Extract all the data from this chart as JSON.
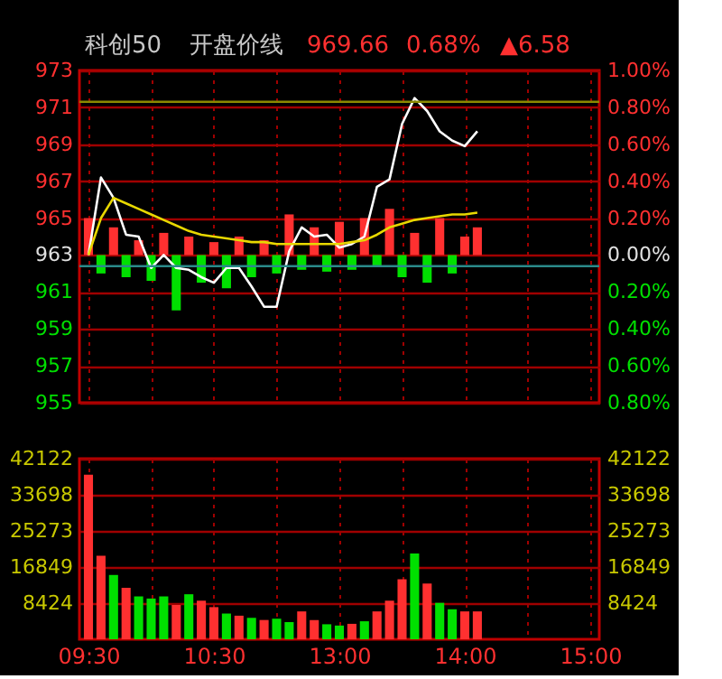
{
  "chart_data": [
    {
      "type": "line",
      "title": "科创50",
      "annotations": [
        "开盘价线",
        "969.66",
        "0.68%",
        "▲6.58"
      ],
      "categories": [
        null,
        null,
        null,
        null,
        null,
        null,
        null,
        null,
        null,
        null,
        null,
        null,
        null,
        null,
        null,
        null,
        null,
        null,
        null,
        null,
        null,
        null,
        null,
        null,
        null,
        null,
        null,
        null,
        null,
        null,
        null,
        null,
        null,
        null,
        null,
        null,
        null,
        null,
        null,
        null,
        null
      ],
      "ylim": [
        955,
        973
      ],
      "yticks": [
        955,
        957,
        959,
        961,
        963,
        965,
        967,
        969,
        971,
        973
      ],
      "y2lim": [
        -0.8,
        1.0
      ],
      "y2ticks": [
        {
          "value": -0.8,
          "label": "0.80%"
        },
        {
          "value": -0.6,
          "label": "0.60%"
        },
        {
          "value": -0.4,
          "label": "0.40%"
        },
        {
          "value": -0.2,
          "label": "0.20%"
        },
        {
          "value": 0,
          "label": "0.00%"
        },
        {
          "value": 0.2,
          "label": "0.20%"
        },
        {
          "value": 0.4,
          "label": "0.40%"
        },
        {
          "value": 0.6,
          "label": "0.60%"
        },
        {
          "value": 0.8,
          "label": "0.80%"
        },
        {
          "value": 1.0,
          "label": "1.00%"
        }
      ],
      "grid": true,
      "tick_labels": "y",
      "ref_lines": [
        {
          "axis": "y",
          "value": 971.3,
          "color": "#8a8a00"
        },
        {
          "axis": "y",
          "value": 962.4,
          "color": "#2a8a8a"
        }
      ],
      "series": [
        {
          "type": "bar",
          "values": [
            2.0,
            -1.0,
            1.5,
            -1.2,
            0.8,
            -1.4,
            1.2,
            -3.0,
            1.0,
            -1.5,
            0.7,
            -1.8,
            1.0,
            -1.2,
            0.8,
            -1.0,
            2.2,
            -0.8,
            1.5,
            -0.9,
            1.8,
            -0.8,
            2.0,
            -0.6,
            2.5,
            -1.2,
            1.2,
            -1.5,
            2.0,
            -1.0,
            1.0,
            1.5,
            null,
            null,
            null,
            null,
            null,
            null,
            null,
            null,
            null
          ],
          "base": [
            963,
            963,
            963,
            963,
            963,
            963,
            963,
            963,
            963,
            963,
            963,
            963,
            963,
            963,
            963,
            963,
            963,
            963,
            963,
            963,
            963,
            963,
            963,
            963,
            963,
            963,
            963,
            963,
            963,
            963,
            963,
            963,
            null,
            null,
            null,
            null,
            null,
            null,
            null,
            null,
            null
          ],
          "colors": [
            "#ff3030",
            "#00e000",
            "#ff3030",
            "#00e000",
            "#ff3030",
            "#00e000",
            "#ff3030",
            "#00e000",
            "#ff3030",
            "#00e000",
            "#ff3030",
            "#00e000",
            "#ff3030",
            "#00e000",
            "#ff3030",
            "#00e000",
            "#ff3030",
            "#00e000",
            "#ff3030",
            "#00e000",
            "#ff3030",
            "#00e000",
            "#ff3030",
            "#00e000",
            "#ff3030",
            "#00e000",
            "#ff3030",
            "#00e000",
            "#ff3030",
            "#00e000",
            "#ff3030",
            "#ff3030",
            null,
            null,
            null,
            null,
            null,
            null,
            null,
            null,
            null
          ]
        },
        {
          "type": "line",
          "color": "#ffffff",
          "values": [
            963.0,
            967.2,
            966.1,
            964.1,
            964.0,
            962.3,
            963.0,
            962.3,
            962.2,
            961.8,
            961.5,
            962.3,
            962.3,
            961.3,
            960.2,
            960.2,
            963.2,
            964.5,
            964.0,
            964.1,
            963.4,
            963.6,
            964.0,
            966.7,
            967.1,
            970.1,
            971.5,
            970.8,
            969.7,
            969.2,
            968.9,
            969.7,
            null,
            null,
            null,
            null,
            null,
            null,
            null,
            null,
            null
          ]
        },
        {
          "type": "line",
          "color": "#e8d800",
          "values": [
            963.0,
            965.0,
            966.1,
            965.8,
            965.5,
            965.2,
            964.9,
            964.6,
            964.3,
            964.1,
            964.0,
            963.9,
            963.8,
            963.7,
            963.7,
            963.6,
            963.6,
            963.6,
            963.6,
            963.6,
            963.6,
            963.7,
            963.8,
            964.1,
            964.5,
            964.7,
            964.9,
            965.0,
            965.1,
            965.2,
            965.2,
            965.3,
            null,
            null,
            null,
            null,
            null,
            null,
            null,
            null,
            null
          ]
        }
      ]
    },
    {
      "type": "bar",
      "categories": [
        "09:30",
        null,
        null,
        null,
        null,
        null,
        null,
        null,
        null,
        null,
        "10:30",
        null,
        null,
        null,
        null,
        null,
        null,
        null,
        null,
        null,
        "13:00",
        null,
        null,
        null,
        null,
        null,
        null,
        null,
        null,
        null,
        "14:00",
        null,
        null,
        null,
        null,
        null,
        null,
        null,
        null,
        null,
        "15:00"
      ],
      "ylim": [
        0,
        42122
      ],
      "yticks": [
        8424,
        16849,
        25273,
        33698,
        42122
      ],
      "y2lim": [
        0,
        42122
      ],
      "y2ticks": [
        8424,
        16849,
        25273,
        33698,
        42122
      ],
      "grid": true,
      "values": [
        38400,
        19500,
        15000,
        12000,
        10000,
        9500,
        10000,
        8000,
        10500,
        9000,
        7500,
        6000,
        5500,
        5000,
        4500,
        4800,
        4000,
        6500,
        4500,
        3500,
        3200,
        3600,
        4200,
        6500,
        9000,
        14000,
        20000,
        13000,
        8500,
        7000,
        6500,
        6500,
        null,
        null,
        null,
        null,
        null,
        null,
        null,
        null,
        null
      ],
      "colors": [
        "#ff3030",
        "#ff3030",
        "#00e000",
        "#ff3030",
        "#00e000",
        "#00e000",
        "#00e000",
        "#ff3030",
        "#00e000",
        "#ff3030",
        "#ff3030",
        "#00e000",
        "#ff3030",
        "#00e000",
        "#ff3030",
        "#00e000",
        "#00e000",
        "#ff3030",
        "#ff3030",
        "#00e000",
        "#00e000",
        "#ff3030",
        "#00e000",
        "#ff3030",
        "#ff3030",
        "#ff3030",
        "#00e000",
        "#ff3030",
        "#00e000",
        "#00e000",
        "#ff3030",
        "#ff3030",
        null,
        null,
        null,
        null,
        null,
        null,
        null,
        null,
        null
      ]
    }
  ]
}
